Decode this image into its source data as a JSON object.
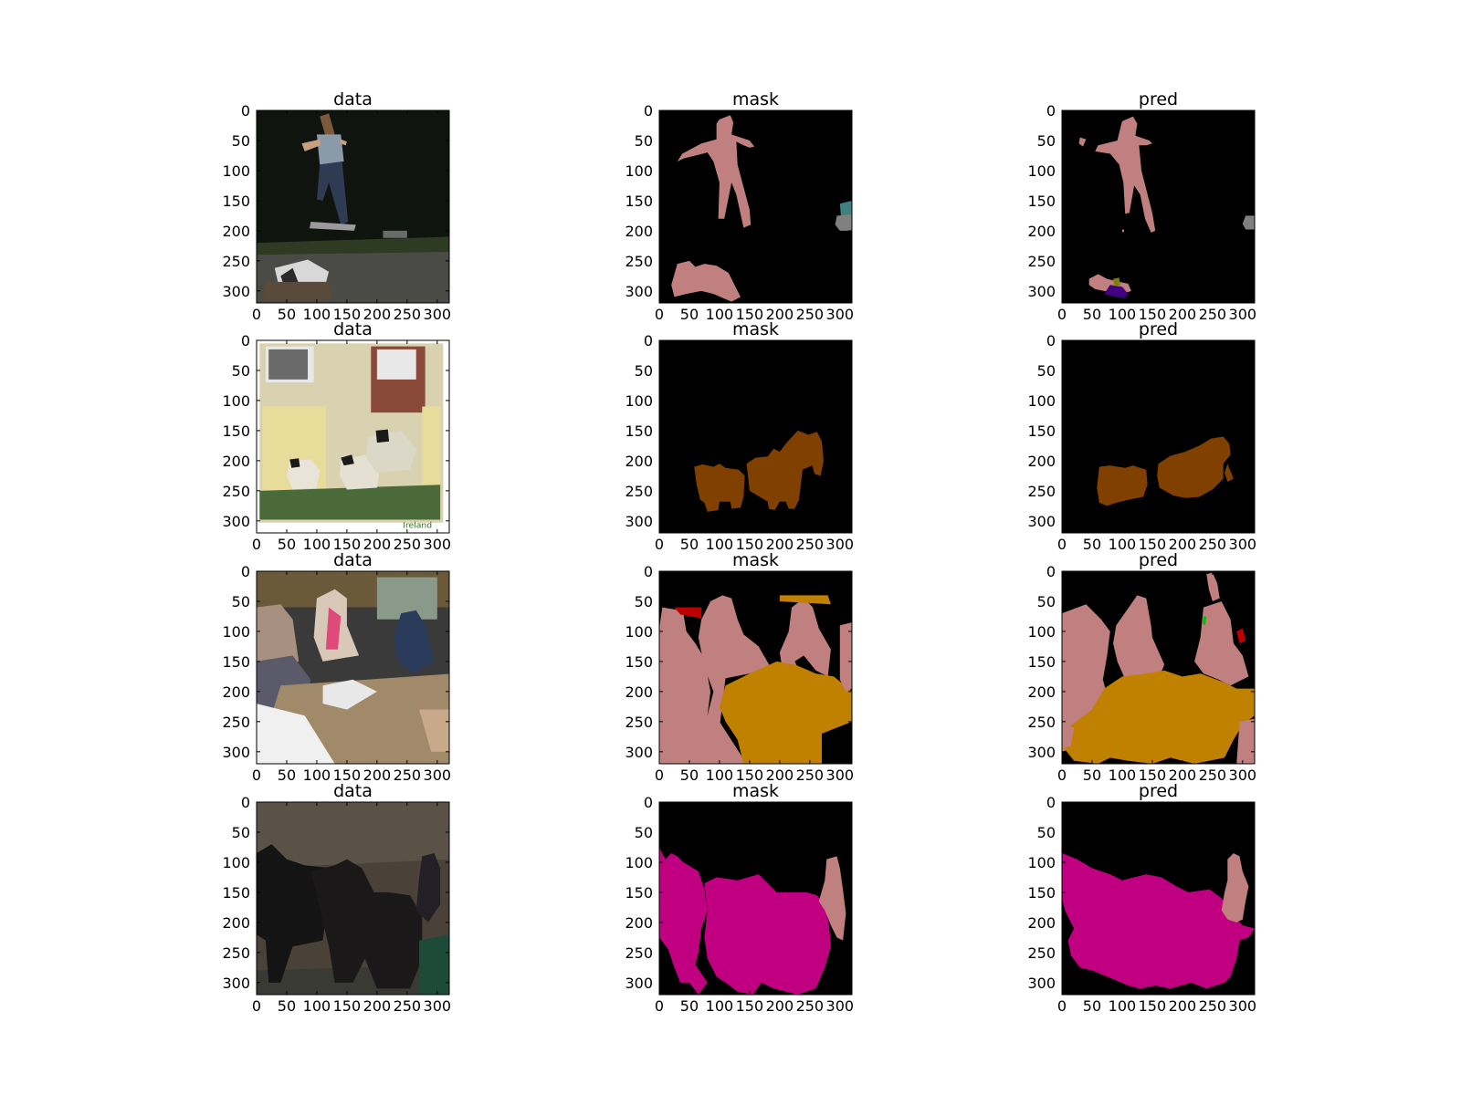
{
  "chart_data": {
    "type": "image-grid",
    "rows": 4,
    "columns": [
      "data",
      "mask",
      "pred"
    ],
    "xticks": [
      0,
      50,
      100,
      150,
      200,
      250,
      300
    ],
    "yticks": [
      0,
      50,
      100,
      150,
      200,
      250,
      300
    ],
    "xlim": [
      0,
      320
    ],
    "ylim": [
      320,
      0
    ],
    "axes": [
      {
        "row": 0,
        "title": "data",
        "content": "photo: skateboarder jumping over a person lying on pavement"
      },
      {
        "row": 0,
        "title": "mask",
        "content": "segmentation mask"
      },
      {
        "row": 0,
        "title": "pred",
        "content": "segmentation prediction"
      },
      {
        "row": 1,
        "title": "data",
        "content": "photo: three sheep in front of a cottage"
      },
      {
        "row": 1,
        "title": "mask",
        "content": "segmentation mask"
      },
      {
        "row": 1,
        "title": "pred",
        "content": "segmentation prediction"
      },
      {
        "row": 2,
        "title": "data",
        "content": "photo: people seated at a dining table"
      },
      {
        "row": 2,
        "title": "mask",
        "content": "segmentation mask"
      },
      {
        "row": 2,
        "title": "pred",
        "content": "segmentation prediction"
      },
      {
        "row": 3,
        "title": "data",
        "content": "photo: two dark horses in harness with a person"
      },
      {
        "row": 3,
        "title": "mask",
        "content": "segmentation mask"
      },
      {
        "row": 3,
        "title": "pred",
        "content": "segmentation prediction"
      }
    ],
    "image_text": {
      "ireland_watermark": "Ireland"
    },
    "class_colors": {
      "background": "#000000",
      "person": "#c08080",
      "sheep": "#804000",
      "horse": "#c00080",
      "dining_table": "#c08000",
      "chair": "#400080",
      "bottle": "#808000",
      "bicycle": "#008000",
      "car": "#808080",
      "motorbike": "#408080",
      "boat_or_sofa": "#c00000",
      "plant": "#00c000"
    }
  }
}
